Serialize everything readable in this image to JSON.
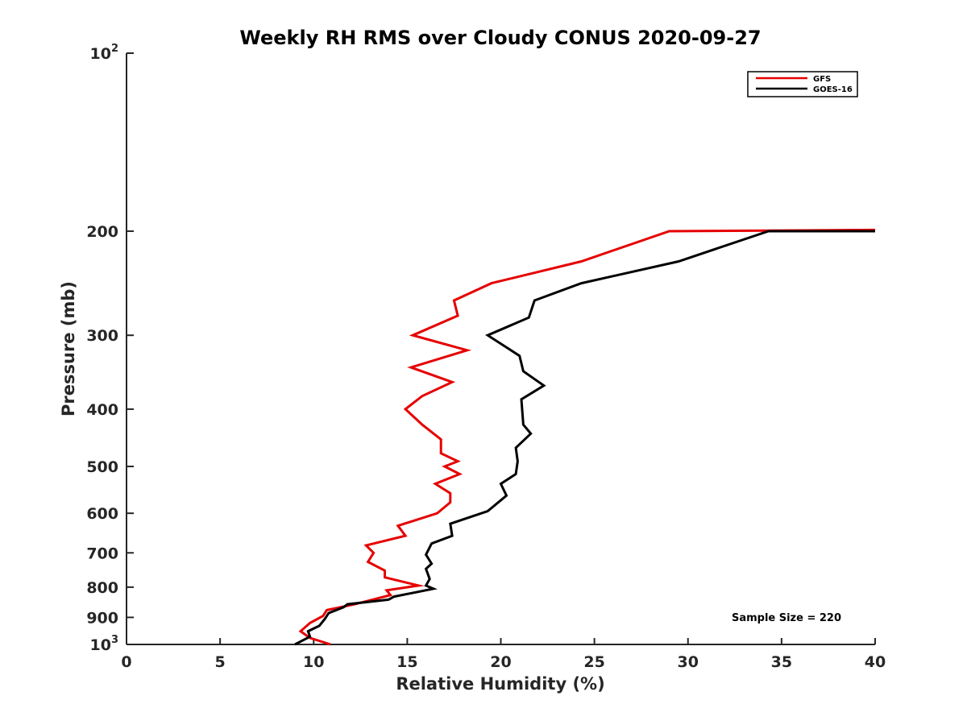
{
  "chart_data": {
    "type": "line",
    "title": "Weekly RH RMS over Cloudy CONUS 2020-09-27",
    "xlabel": "Relative Humidity (%)",
    "ylabel": "Pressure (mb)",
    "xlim": [
      0,
      40
    ],
    "ylim": [
      100,
      1000
    ],
    "y_scale": "log",
    "y_reversed": true,
    "grid": false,
    "legend_position": "top-right",
    "x_ticks": [
      0,
      5,
      10,
      15,
      20,
      25,
      30,
      35,
      40
    ],
    "y_ticks": [
      {
        "value": 100,
        "base": "10",
        "exp": "2"
      },
      {
        "value": 200,
        "label": "200"
      },
      {
        "value": 300,
        "label": "300"
      },
      {
        "value": 400,
        "label": "400"
      },
      {
        "value": 500,
        "label": "500"
      },
      {
        "value": 600,
        "label": "600"
      },
      {
        "value": 700,
        "label": "700"
      },
      {
        "value": 800,
        "label": "800"
      },
      {
        "value": 900,
        "label": "900"
      },
      {
        "value": 1000,
        "base": "10",
        "exp": "3"
      }
    ],
    "annotation": "Sample Size = 220",
    "series": [
      {
        "name": "GFS",
        "color": "#e60000",
        "points": [
          [
            40,
            199
          ],
          [
            29.0,
            200
          ],
          [
            24.3,
            225
          ],
          [
            19.5,
            245
          ],
          [
            17.5,
            262
          ],
          [
            17.7,
            278
          ],
          [
            15.3,
            300
          ],
          [
            18.2,
            318
          ],
          [
            15.2,
            340
          ],
          [
            17.4,
            360
          ],
          [
            15.8,
            380
          ],
          [
            14.9,
            400
          ],
          [
            15.8,
            425
          ],
          [
            16.8,
            450
          ],
          [
            16.8,
            475
          ],
          [
            17.7,
            490
          ],
          [
            17.0,
            500
          ],
          [
            17.8,
            515
          ],
          [
            16.5,
            535
          ],
          [
            17.3,
            555
          ],
          [
            17.3,
            575
          ],
          [
            16.6,
            600
          ],
          [
            14.5,
            630
          ],
          [
            14.9,
            655
          ],
          [
            12.8,
            680
          ],
          [
            13.2,
            700
          ],
          [
            12.9,
            725
          ],
          [
            13.8,
            750
          ],
          [
            13.8,
            770
          ],
          [
            15.6,
            795
          ],
          [
            13.9,
            810
          ],
          [
            14.1,
            825
          ],
          [
            12.2,
            855
          ],
          [
            10.7,
            875
          ],
          [
            10.5,
            895
          ],
          [
            9.8,
            920
          ],
          [
            9.3,
            950
          ],
          [
            9.8,
            975
          ],
          [
            10.9,
            1000
          ]
        ]
      },
      {
        "name": "GOES-16",
        "color": "#000000",
        "points": [
          [
            40,
            200
          ],
          [
            34.3,
            200
          ],
          [
            29.5,
            225
          ],
          [
            24.3,
            245
          ],
          [
            21.8,
            262
          ],
          [
            21.5,
            280
          ],
          [
            19.3,
            300
          ],
          [
            21.0,
            325
          ],
          [
            21.2,
            345
          ],
          [
            22.3,
            365
          ],
          [
            21.1,
            385
          ],
          [
            21.2,
            425
          ],
          [
            21.6,
            440
          ],
          [
            20.8,
            465
          ],
          [
            20.9,
            490
          ],
          [
            20.8,
            515
          ],
          [
            20.0,
            535
          ],
          [
            20.3,
            560
          ],
          [
            19.3,
            595
          ],
          [
            17.3,
            625
          ],
          [
            17.4,
            655
          ],
          [
            16.3,
            675
          ],
          [
            16.0,
            705
          ],
          [
            16.3,
            730
          ],
          [
            16.0,
            745
          ],
          [
            16.2,
            775
          ],
          [
            16.0,
            795
          ],
          [
            16.4,
            805
          ],
          [
            14.3,
            830
          ],
          [
            14.0,
            840
          ],
          [
            11.8,
            855
          ],
          [
            11.6,
            865
          ],
          [
            10.8,
            885
          ],
          [
            10.6,
            905
          ],
          [
            10.3,
            930
          ],
          [
            9.7,
            950
          ],
          [
            9.8,
            970
          ],
          [
            9.0,
            1000
          ]
        ]
      }
    ]
  }
}
